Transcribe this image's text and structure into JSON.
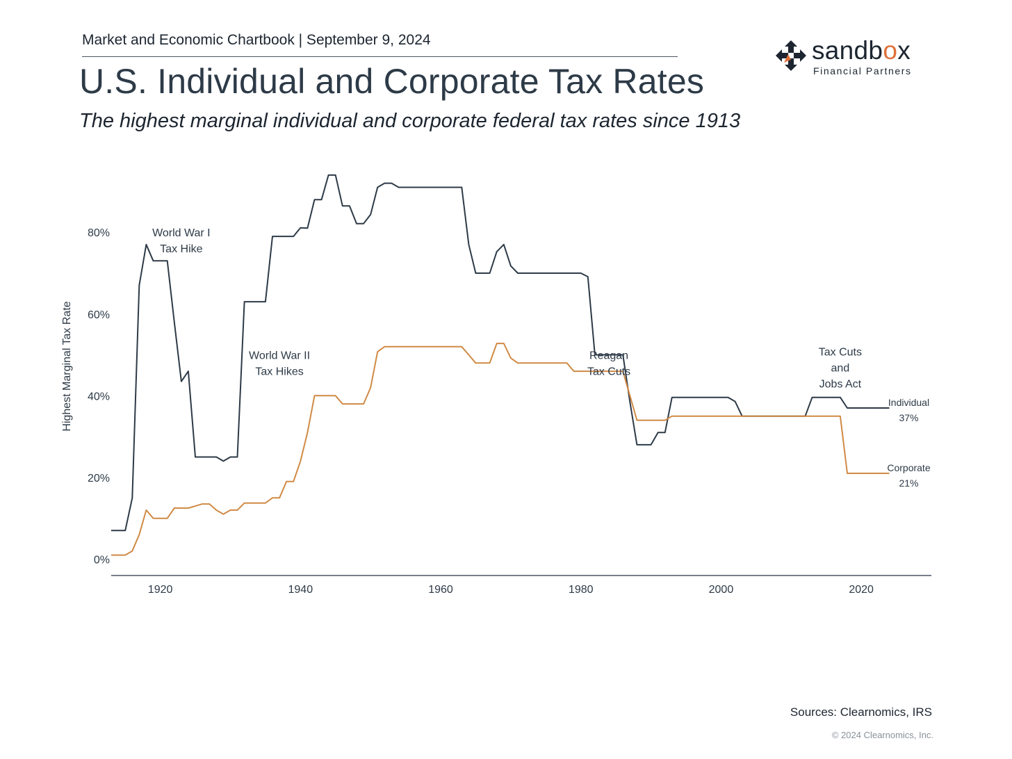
{
  "header": {
    "line": "Market and Economic Chartbook | September 9, 2024",
    "title": "U.S. Individual and Corporate Tax Rates",
    "subtitle": "The highest marginal individual and corporate federal tax rates since 1913"
  },
  "logo": {
    "word_main": "sandb",
    "word_accent": "o",
    "word_end": "x",
    "sub": "Financial Partners"
  },
  "colors": {
    "individual": "#2d3a47",
    "corporate": "#d08a45",
    "logo_accent": "#e0703a"
  },
  "chart_data": {
    "type": "line",
    "title": "",
    "xlabel": "",
    "ylabel": "Highest Marginal Tax Rate",
    "xlim": [
      1913,
      2030
    ],
    "ylim": [
      -4,
      95
    ],
    "x_ticks": [
      1920,
      1940,
      1960,
      1980,
      2000,
      2020
    ],
    "y_ticks": [
      0,
      20,
      40,
      60,
      80
    ],
    "y_tick_labels": [
      "0%",
      "20%",
      "40%",
      "60%",
      "80%"
    ],
    "series": [
      {
        "name": "Individual",
        "end_label": "37%",
        "points": [
          [
            1913,
            7
          ],
          [
            1915,
            7
          ],
          [
            1916,
            15
          ],
          [
            1917,
            67
          ],
          [
            1918,
            77
          ],
          [
            1919,
            73
          ],
          [
            1921,
            73
          ],
          [
            1922,
            58
          ],
          [
            1923,
            43.5
          ],
          [
            1924,
            46
          ],
          [
            1925,
            25
          ],
          [
            1928,
            25
          ],
          [
            1929,
            24
          ],
          [
            1930,
            25
          ],
          [
            1931,
            25
          ],
          [
            1932,
            63
          ],
          [
            1935,
            63
          ],
          [
            1936,
            79
          ],
          [
            1939,
            79
          ],
          [
            1940,
            81.1
          ],
          [
            1941,
            81
          ],
          [
            1942,
            88
          ],
          [
            1943,
            88
          ],
          [
            1944,
            94
          ],
          [
            1945,
            94
          ],
          [
            1946,
            86.45
          ],
          [
            1947,
            86.45
          ],
          [
            1948,
            82.13
          ],
          [
            1949,
            82.13
          ],
          [
            1950,
            84.36
          ],
          [
            1951,
            91
          ],
          [
            1952,
            92
          ],
          [
            1953,
            92
          ],
          [
            1954,
            91
          ],
          [
            1963,
            91
          ],
          [
            1964,
            77
          ],
          [
            1965,
            70
          ],
          [
            1967,
            70
          ],
          [
            1968,
            75.25
          ],
          [
            1969,
            77
          ],
          [
            1970,
            71.75
          ],
          [
            1971,
            70
          ],
          [
            1980,
            70
          ],
          [
            1981,
            69.13
          ],
          [
            1982,
            50
          ],
          [
            1986,
            50
          ],
          [
            1987,
            38.5
          ],
          [
            1988,
            28
          ],
          [
            1990,
            28
          ],
          [
            1991,
            31
          ],
          [
            1992,
            31
          ],
          [
            1993,
            39.6
          ],
          [
            2001,
            39.6
          ],
          [
            2002,
            38.6
          ],
          [
            2003,
            35
          ],
          [
            2012,
            35
          ],
          [
            2013,
            39.6
          ],
          [
            2017,
            39.6
          ],
          [
            2018,
            37
          ],
          [
            2024,
            37
          ]
        ]
      },
      {
        "name": "Corporate",
        "end_label": "21%",
        "points": [
          [
            1913,
            1
          ],
          [
            1915,
            1
          ],
          [
            1916,
            2
          ],
          [
            1917,
            6
          ],
          [
            1918,
            12
          ],
          [
            1919,
            10
          ],
          [
            1921,
            10
          ],
          [
            1922,
            12.5
          ],
          [
            1924,
            12.5
          ],
          [
            1925,
            13
          ],
          [
            1926,
            13.5
          ],
          [
            1927,
            13.5
          ],
          [
            1928,
            12
          ],
          [
            1929,
            11
          ],
          [
            1930,
            12
          ],
          [
            1931,
            12
          ],
          [
            1932,
            13.75
          ],
          [
            1935,
            13.75
          ],
          [
            1936,
            15
          ],
          [
            1937,
            15
          ],
          [
            1938,
            19
          ],
          [
            1939,
            19
          ],
          [
            1940,
            24
          ],
          [
            1941,
            31
          ],
          [
            1942,
            40
          ],
          [
            1945,
            40
          ],
          [
            1946,
            38
          ],
          [
            1949,
            38
          ],
          [
            1950,
            42
          ],
          [
            1951,
            50.75
          ],
          [
            1952,
            52
          ],
          [
            1963,
            52
          ],
          [
            1964,
            50
          ],
          [
            1965,
            48
          ],
          [
            1967,
            48
          ],
          [
            1968,
            52.8
          ],
          [
            1969,
            52.8
          ],
          [
            1970,
            49.2
          ],
          [
            1971,
            48
          ],
          [
            1978,
            48
          ],
          [
            1979,
            46
          ],
          [
            1986,
            46
          ],
          [
            1987,
            40
          ],
          [
            1988,
            34
          ],
          [
            1992,
            34
          ],
          [
            1993,
            35
          ],
          [
            2017,
            35
          ],
          [
            2018,
            21
          ],
          [
            2024,
            21
          ]
        ]
      }
    ],
    "annotations": [
      {
        "lines": [
          "World War I",
          "Tax Hike"
        ],
        "x": 1923,
        "y": 79
      },
      {
        "lines": [
          "World War II",
          "Tax Hikes"
        ],
        "x": 1937,
        "y": 49
      },
      {
        "lines": [
          "Reagan",
          "Tax Cuts"
        ],
        "x": 1984,
        "y": 49
      },
      {
        "lines": [
          "Tax Cuts",
          "and",
          "Jobs Act"
        ],
        "x": 2017,
        "y": 49.8
      }
    ],
    "legend": "end-of-line labels"
  },
  "footer": {
    "sources": "Sources: Clearnomics, IRS",
    "copyright": "© 2024 Clearnomics, Inc."
  }
}
